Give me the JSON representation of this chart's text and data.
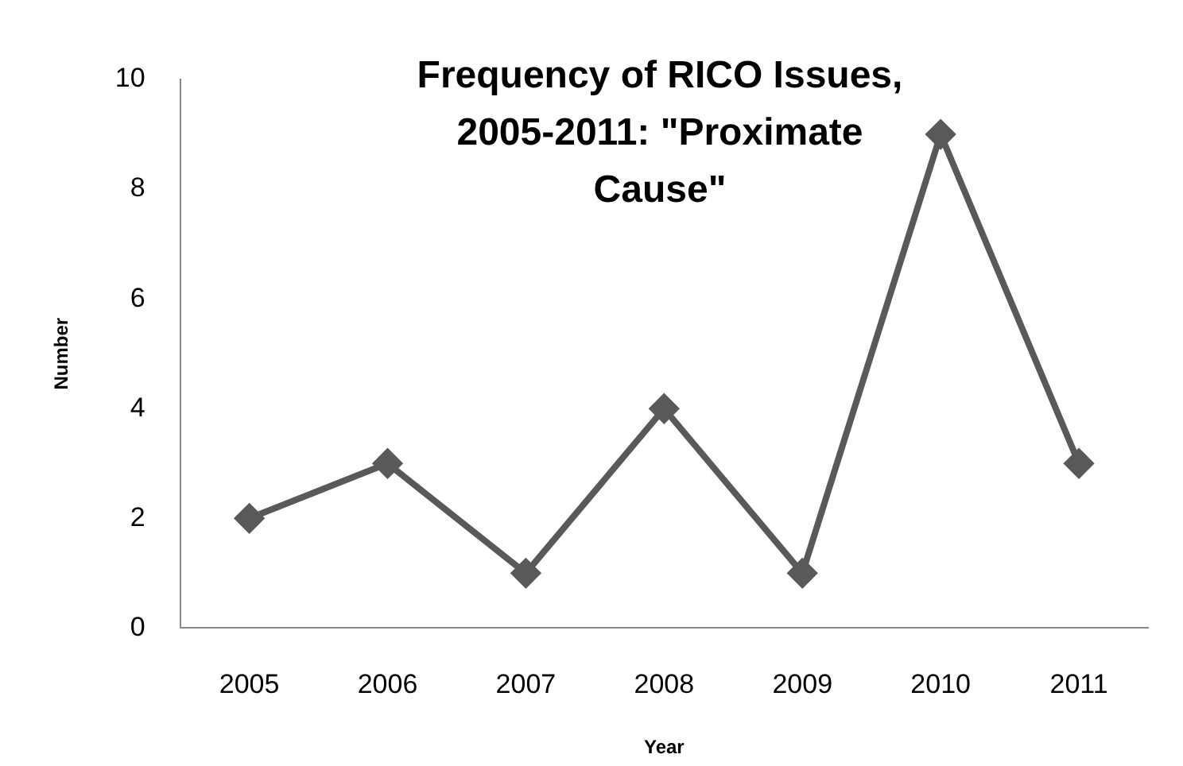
{
  "chart_data": {
    "type": "line",
    "title": "Frequency of RICO Issues, 2005-2011: \"Proximate Cause\"",
    "xlabel": "Year",
    "ylabel": "Number",
    "categories": [
      "2005",
      "2006",
      "2007",
      "2008",
      "2009",
      "2010",
      "2011"
    ],
    "values": [
      2,
      3,
      1,
      4,
      1,
      9,
      3
    ],
    "color": "#595959",
    "marker": "diamond",
    "ylim": [
      0,
      10
    ],
    "yticks": [
      0,
      2,
      4,
      6,
      8,
      10
    ]
  }
}
